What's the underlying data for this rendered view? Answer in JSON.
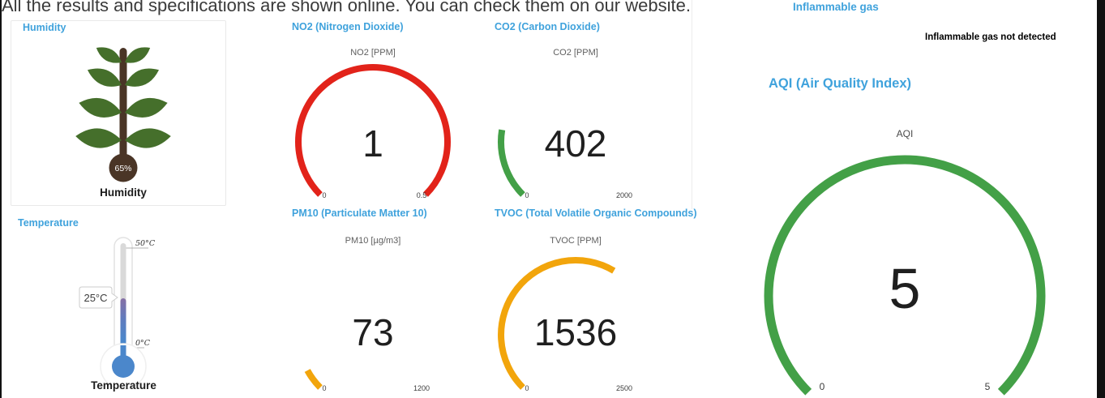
{
  "theme": {
    "title_color": "#3fa2dc"
  },
  "note": "All the results and specifications are shown online. You can check them on our website.",
  "humidity": {
    "title": "Humidity",
    "value": "65%",
    "caption": "Humidity"
  },
  "temperature": {
    "title": "Temperature",
    "value": "25°C",
    "scale_max": "50°C",
    "scale_min": "0°C",
    "caption": "Temperature"
  },
  "gauges": {
    "no2": {
      "title": "NO2 (Nitrogen Dioxide)",
      "unit": "NO2 [PPM]",
      "display": "1",
      "value": 1,
      "min": 0,
      "max": 0.5,
      "min_label": "0",
      "max_label": "0.5",
      "color": "#e2231a"
    },
    "co2": {
      "title": "CO2 (Carbon Dioxide)",
      "unit": "CO2 [PPM]",
      "display": "402",
      "value": 402,
      "min": 0,
      "max": 2000,
      "min_label": "0",
      "max_label": "2000",
      "color": "#43a047"
    },
    "pm10": {
      "title": "PM10 (Particulate Matter 10)",
      "unit": "PM10 [µg/m3]",
      "display": "73",
      "value": 73,
      "min": 0,
      "max": 1200,
      "min_label": "0",
      "max_label": "1200",
      "color": "#f2a50c"
    },
    "tvoc": {
      "title": "TVOC (Total Volatile Organic Compounds)",
      "unit": "TVOC [PPM]",
      "display": "1536",
      "value": 1536,
      "min": 0,
      "max": 2500,
      "min_label": "0",
      "max_label": "2500",
      "color": "#f2a50c"
    },
    "aqi": {
      "title": "AQI (Air Quality Index)",
      "unit": "AQI",
      "display": "5",
      "value": 5,
      "min": 0,
      "max": 5,
      "min_label": "0",
      "max_label": "5",
      "color": "#43a047"
    }
  },
  "inflammable": {
    "title": "Inflammable gas",
    "status": "Inflammable gas not detected"
  }
}
